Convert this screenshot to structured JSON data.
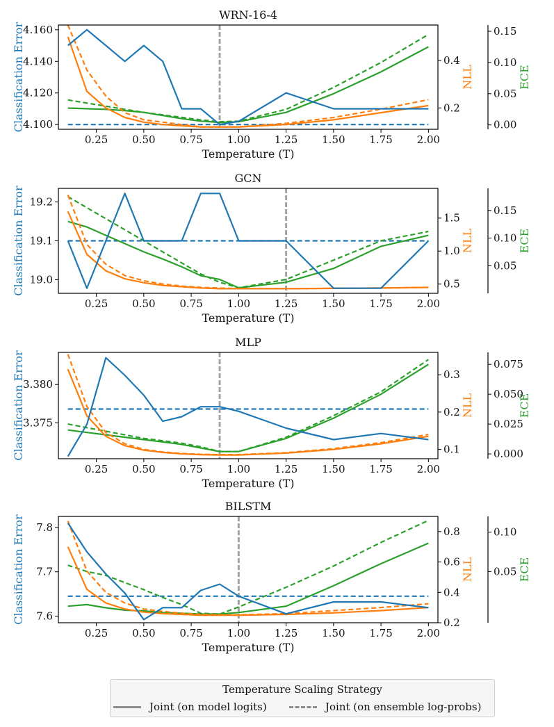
{
  "chart_data": [
    {
      "type": "line",
      "title": "WRN-16-4",
      "xlabel": "Temperature (T)",
      "ylabel_left": "Classification Error",
      "ylabel_nll": "NLL",
      "ylabel_ece": "ECE",
      "x": [
        0.1,
        0.2,
        0.3,
        0.4,
        0.5,
        0.6,
        0.7,
        0.8,
        0.9,
        1.0,
        1.25,
        1.5,
        1.75,
        2.0
      ],
      "xticks": [
        "0.25",
        "0.50",
        "0.75",
        "1.00",
        "1.25",
        "1.50",
        "1.75",
        "2.00"
      ],
      "xlim": [
        0.05,
        2.05
      ],
      "vline": 0.9,
      "error": {
        "ylim": [
          4.097,
          4.163
        ],
        "ticks": [
          "4.100",
          "4.120",
          "4.140",
          "4.160"
        ],
        "model": [
          4.15,
          4.16,
          4.15,
          4.14,
          4.15,
          4.14,
          4.11,
          4.11,
          4.1,
          4.102,
          4.12,
          4.11,
          4.11,
          4.11
        ],
        "ensemble": [
          4.1,
          4.1,
          4.1,
          4.1,
          4.1,
          4.1,
          4.1,
          4.1,
          4.1,
          4.1,
          4.1,
          4.1,
          4.1,
          4.1
        ]
      },
      "nll": {
        "ylim": [
          0.11,
          0.55
        ],
        "ticks": [
          "0.2",
          "0.4"
        ],
        "model": [
          0.5,
          0.27,
          0.2,
          0.16,
          0.14,
          0.13,
          0.125,
          0.12,
          0.12,
          0.12,
          0.13,
          0.15,
          0.18,
          0.21
        ],
        "ensemble": [
          0.55,
          0.36,
          0.25,
          0.18,
          0.15,
          0.14,
          0.13,
          0.12,
          0.12,
          0.12,
          0.135,
          0.16,
          0.195,
          0.235
        ]
      },
      "ece": {
        "ylim": [
          -0.007,
          0.16
        ],
        "ticks": [
          "0.00",
          "0.05",
          "0.10",
          "0.15"
        ],
        "model": [
          0.027,
          0.026,
          0.025,
          0.023,
          0.02,
          0.015,
          0.01,
          0.006,
          0.004,
          0.005,
          0.02,
          0.05,
          0.085,
          0.125
        ],
        "ensemble": [
          0.04,
          0.035,
          0.03,
          0.025,
          0.02,
          0.016,
          0.012,
          0.008,
          0.005,
          0.006,
          0.025,
          0.06,
          0.1,
          0.145
        ]
      }
    },
    {
      "type": "line",
      "title": "GCN",
      "xlabel": "Temperature (T)",
      "ylabel_left": "Classification Error",
      "ylabel_nll": "NLL",
      "ylabel_ece": "ECE",
      "x": [
        0.1,
        0.2,
        0.3,
        0.4,
        0.5,
        0.6,
        0.7,
        0.8,
        0.9,
        1.0,
        1.25,
        1.5,
        1.75,
        2.0
      ],
      "xticks": [
        "0.25",
        "0.50",
        "0.75",
        "1.00",
        "1.25",
        "1.50",
        "1.75",
        "2.00"
      ],
      "xlim": [
        0.05,
        2.05
      ],
      "vline": 1.25,
      "error": {
        "ylim": [
          18.965,
          19.235
        ],
        "ticks": [
          "19.0",
          "19.1",
          "19.2"
        ],
        "model": [
          19.1,
          18.978,
          19.1,
          19.222,
          19.1,
          19.1,
          19.1,
          19.222,
          19.222,
          19.1,
          19.1,
          18.978,
          18.978,
          19.1
        ],
        "ensemble": [
          19.1,
          19.1,
          19.1,
          19.1,
          19.1,
          19.1,
          19.1,
          19.1,
          19.1,
          19.1,
          19.1,
          19.1,
          19.1,
          19.1
        ]
      },
      "nll": {
        "ylim": [
          0.36,
          1.95
        ],
        "ticks": [
          "0.5",
          "1.0",
          "1.5"
        ],
        "model": [
          1.6,
          0.95,
          0.7,
          0.58,
          0.52,
          0.48,
          0.46,
          0.44,
          0.43,
          0.43,
          0.43,
          0.435,
          0.44,
          0.45
        ],
        "ensemble": [
          1.85,
          1.1,
          0.8,
          0.63,
          0.55,
          0.5,
          0.47,
          0.45,
          0.44,
          0.43,
          0.43,
          0.435,
          0.44,
          0.45
        ]
      },
      "ece": {
        "ylim": [
          0.0,
          0.19
        ],
        "ticks": [
          "0.05",
          "0.10",
          "0.15"
        ],
        "model": [
          0.13,
          0.12,
          0.105,
          0.09,
          0.075,
          0.062,
          0.048,
          0.032,
          0.025,
          0.01,
          0.02,
          0.045,
          0.085,
          0.105
        ],
        "ensemble": [
          0.175,
          0.155,
          0.135,
          0.115,
          0.095,
          0.075,
          0.055,
          0.035,
          0.02,
          0.01,
          0.025,
          0.06,
          0.095,
          0.112
        ]
      }
    },
    {
      "type": "line",
      "title": "MLP",
      "xlabel": "Temperature (T)",
      "ylabel_left": "Classification Error",
      "ylabel_nll": "NLL",
      "ylabel_ece": "ECE",
      "x": [
        0.1,
        0.2,
        0.3,
        0.4,
        0.5,
        0.6,
        0.7,
        0.8,
        0.9,
        1.0,
        1.25,
        1.5,
        1.75,
        2.0
      ],
      "xticks": [
        "0.25",
        "0.50",
        "0.75",
        "1.00",
        "1.25",
        "1.50",
        "1.75",
        "2.00"
      ],
      "xlim": [
        0.05,
        2.05
      ],
      "vline": 0.9,
      "error": {
        "ylim": [
          3.3703,
          3.3842
        ],
        "ticks": [
          "3.375",
          "3.380"
        ],
        "model": [
          3.3706,
          3.3748,
          3.3835,
          3.3812,
          3.3786,
          3.3752,
          3.3758,
          3.3771,
          3.3771,
          3.3765,
          3.3743,
          3.3728,
          3.3736,
          3.3728
        ],
        "ensemble": [
          3.3768,
          3.3768,
          3.3768,
          3.3768,
          3.3768,
          3.3768,
          3.3768,
          3.3768,
          3.3768,
          3.3768,
          3.3768,
          3.3768,
          3.3768,
          3.3768
        ]
      },
      "nll": {
        "ylim": [
          0.075,
          0.36
        ],
        "ticks": [
          "0.1",
          "0.2",
          "0.3"
        ],
        "model": [
          0.315,
          0.19,
          0.135,
          0.11,
          0.098,
          0.092,
          0.088,
          0.086,
          0.085,
          0.085,
          0.09,
          0.1,
          0.115,
          0.135
        ],
        "ensemble": [
          0.355,
          0.215,
          0.145,
          0.115,
          0.1,
          0.093,
          0.089,
          0.087,
          0.086,
          0.086,
          0.091,
          0.102,
          0.118,
          0.14
        ]
      },
      "ece": {
        "ylim": [
          -0.004,
          0.085
        ],
        "ticks": [
          "0.000",
          "0.025",
          "0.050",
          "0.075"
        ],
        "model": [
          0.02,
          0.018,
          0.016,
          0.014,
          0.012,
          0.01,
          0.008,
          0.005,
          0.002,
          0.002,
          0.013,
          0.03,
          0.05,
          0.075
        ],
        "ensemble": [
          0.025,
          0.022,
          0.019,
          0.016,
          0.013,
          0.011,
          0.009,
          0.006,
          0.002,
          0.002,
          0.014,
          0.032,
          0.052,
          0.079
        ]
      }
    },
    {
      "type": "line",
      "title": "BILSTM",
      "xlabel": "Temperature (T)",
      "ylabel_left": "Classification Error",
      "ylabel_nll": "NLL",
      "ylabel_ece": "ECE",
      "x": [
        0.1,
        0.2,
        0.3,
        0.4,
        0.5,
        0.6,
        0.7,
        0.8,
        0.9,
        1.0,
        1.25,
        1.5,
        1.75,
        2.0
      ],
      "xticks": [
        "0.25",
        "0.50",
        "0.75",
        "1.00",
        "1.25",
        "1.50",
        "1.75",
        "2.00"
      ],
      "xlim": [
        0.05,
        2.05
      ],
      "vline": 1.0,
      "error": {
        "ylim": [
          7.585,
          7.825
        ],
        "ticks": [
          "7.6",
          "7.7",
          "7.8"
        ],
        "model": [
          7.81,
          7.745,
          7.695,
          7.652,
          7.592,
          7.619,
          7.619,
          7.658,
          7.672,
          7.645,
          7.605,
          7.632,
          7.632,
          7.619
        ],
        "ensemble": [
          7.645,
          7.645,
          7.645,
          7.645,
          7.645,
          7.645,
          7.645,
          7.645,
          7.645,
          7.645,
          7.645,
          7.645,
          7.645,
          7.645
        ]
      },
      "nll": {
        "ylim": [
          0.2,
          0.9
        ],
        "ticks": [
          "0.2",
          "0.4",
          "0.6",
          "0.8"
        ],
        "model": [
          0.7,
          0.42,
          0.33,
          0.29,
          0.27,
          0.26,
          0.255,
          0.25,
          0.25,
          0.25,
          0.255,
          0.265,
          0.28,
          0.3
        ],
        "ensemble": [
          0.87,
          0.54,
          0.4,
          0.33,
          0.29,
          0.275,
          0.262,
          0.255,
          0.252,
          0.252,
          0.26,
          0.28,
          0.3,
          0.325
        ]
      },
      "ece": {
        "ylim": [
          -0.015,
          0.12
        ],
        "ticks": [
          "0.05",
          "0.10"
        ],
        "model": [
          0.006,
          0.008,
          0.004,
          0.001,
          0.0,
          -0.002,
          -0.003,
          -0.004,
          -0.004,
          -0.002,
          0.006,
          0.032,
          0.06,
          0.086
        ],
        "ensemble": [
          0.058,
          0.05,
          0.045,
          0.036,
          0.027,
          0.017,
          0.008,
          -0.003,
          -0.004,
          0.005,
          0.03,
          0.057,
          0.087,
          0.115
        ]
      }
    }
  ],
  "legend": {
    "title": "Temperature Scaling Strategy",
    "solid_label": "Joint (on model logits)",
    "dashed_label": "Joint (on ensemble log-probs)"
  },
  "colors": {
    "error": "#1f77b4",
    "nll": "#ff7f0e",
    "ece": "#2ca02c",
    "vline": "#9a9a9a"
  }
}
